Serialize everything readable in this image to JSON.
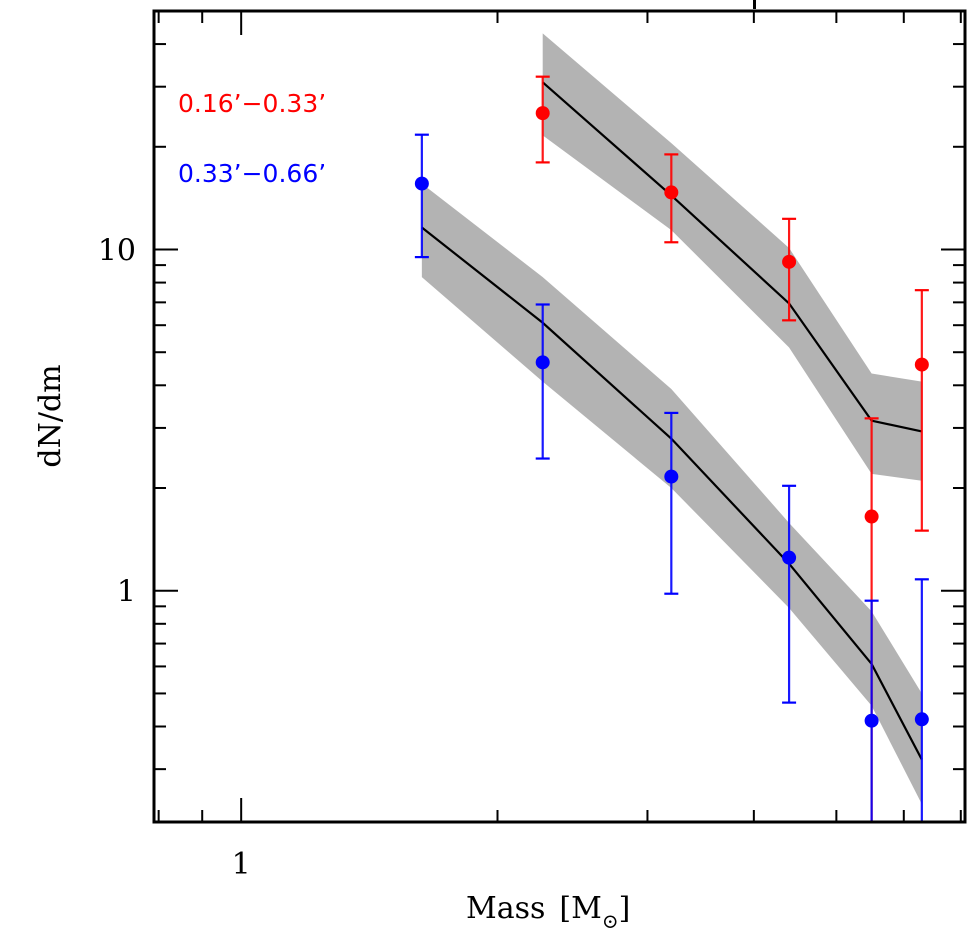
{
  "chart_data": {
    "type": "scatter",
    "title": "",
    "xlabel": "Mass [M⊙]",
    "xlabel_main": "Mass",
    "xlabel_unit": "M",
    "xlabel_unit_subscript": "⊙",
    "ylabel": "dN/dm",
    "x_scale": "log",
    "y_scale": "log",
    "xlim": [
      0.79,
      7.08
    ],
    "ylim": [
      0.21,
      50
    ],
    "x_major_ticks": [
      1
    ],
    "x_major_tick_labels": [
      "1"
    ],
    "x_minor_ticks": [
      0.8,
      0.9,
      2,
      3,
      4,
      5,
      6,
      7
    ],
    "y_major_ticks": [
      1,
      10
    ],
    "y_major_tick_labels": [
      "1",
      "10"
    ],
    "y_minor_ticks": [
      0.3,
      0.4,
      0.5,
      0.6,
      0.7,
      0.8,
      0.9,
      2,
      3,
      4,
      5,
      6,
      7,
      8,
      9,
      20,
      30,
      40
    ],
    "grid": false,
    "legend_position": "top-left",
    "series": [
      {
        "name": "0.16’−0.33’",
        "color": "#ff0000",
        "points": [
          {
            "x": 2.26,
            "y": 25.1,
            "y_lo": 18.0,
            "y_hi": 32.1
          },
          {
            "x": 3.2,
            "y": 14.7,
            "y_lo": 10.5,
            "y_hi": 19.0
          },
          {
            "x": 4.4,
            "y": 9.2,
            "y_lo": 6.2,
            "y_hi": 12.3
          },
          {
            "x": 5.5,
            "y": 1.65,
            "y_lo": 0.0,
            "y_hi": 3.2
          },
          {
            "x": 6.3,
            "y": 4.6,
            "y_lo": 1.5,
            "y_hi": 7.6
          }
        ],
        "model": {
          "x": [
            2.26,
            3.2,
            4.4,
            5.5,
            6.3
          ],
          "y": [
            30.9,
            14.4,
            6.95,
            3.15,
            2.93
          ],
          "y_lo": [
            21.6,
            11.4,
            5.16,
            2.2,
            2.1
          ],
          "y_hi": [
            43.0,
            20.5,
            10.1,
            4.33,
            4.1
          ]
        }
      },
      {
        "name": "0.33’−0.66’",
        "color": "#0000ff",
        "points": [
          {
            "x": 1.63,
            "y": 15.6,
            "y_lo": 9.5,
            "y_hi": 21.7
          },
          {
            "x": 2.26,
            "y": 4.67,
            "y_lo": 2.44,
            "y_hi": 6.9
          },
          {
            "x": 3.2,
            "y": 2.16,
            "y_lo": 0.98,
            "y_hi": 3.32
          },
          {
            "x": 4.4,
            "y": 1.25,
            "y_lo": 0.47,
            "y_hi": 2.03
          },
          {
            "x": 5.5,
            "y": 0.416,
            "y_lo": 0.0,
            "y_hi": 0.935
          },
          {
            "x": 6.3,
            "y": 0.42,
            "y_lo": 0.0,
            "y_hi": 1.08
          }
        ],
        "model": {
          "x": [
            1.63,
            2.26,
            3.2,
            4.4,
            5.5,
            6.3
          ],
          "y": [
            11.6,
            6.1,
            2.79,
            1.2,
            0.61,
            0.32
          ],
          "y_lo": [
            8.3,
            4.1,
            2.0,
            0.89,
            0.46,
            0.237
          ],
          "y_hi": [
            15.6,
            8.3,
            3.9,
            1.58,
            0.87,
            0.5
          ]
        }
      }
    ],
    "band_color": "#b3b3b3",
    "model_line_color": "#000000"
  }
}
